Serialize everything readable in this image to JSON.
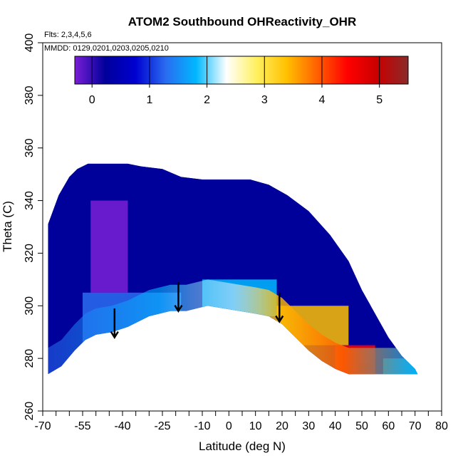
{
  "chart_data": {
    "type": "heatmap",
    "title": "ATOM2 Southbound OHReactivity_OHR",
    "flights_label": "Flts: 2,3,4,5,6",
    "dates_label": "MMDD: 0129,0201,0203,0205,0210",
    "xlabel": "Latitude (deg N)",
    "ylabel": "Theta (C)",
    "xlim": [
      -70,
      80
    ],
    "ylim": [
      260,
      400
    ],
    "x_ticks_labeled": [
      -70,
      -55,
      -40,
      -25,
      -10,
      0,
      10,
      20,
      30,
      40,
      50,
      60,
      70,
      80
    ],
    "x_ticks_minor": [
      -65,
      -60,
      -50,
      -45,
      -35,
      -30,
      -20,
      -15,
      -5,
      5,
      15,
      25,
      35,
      45,
      55,
      65,
      75
    ],
    "y_ticks": [
      260,
      280,
      300,
      320,
      340,
      360,
      380,
      400
    ],
    "colorbar": {
      "ticks": [
        0,
        1,
        2,
        3,
        4,
        5
      ],
      "range": [
        -0.3,
        5.5
      ]
    },
    "colors": {
      "scale": [
        "#7a1ed6",
        "#00009a",
        "#0000d0",
        "#2a6cf0",
        "#00b8ff",
        "#ffffff",
        "#fff060",
        "#ffc000",
        "#ff6000",
        "#ff0000",
        "#c80000",
        "#8b2a2a"
      ],
      "frame": "#000000"
    },
    "filled_region": {
      "upper": [
        [
          -68,
          331
        ],
        [
          -64,
          342
        ],
        [
          -60,
          349
        ],
        [
          -57,
          352
        ],
        [
          -53,
          354
        ],
        [
          -38,
          354
        ],
        [
          -33,
          353
        ],
        [
          -25,
          352
        ],
        [
          -18,
          349
        ],
        [
          -10,
          348
        ],
        [
          -2,
          348
        ],
        [
          8,
          348
        ],
        [
          15,
          346
        ],
        [
          22,
          342
        ],
        [
          30,
          336
        ],
        [
          38,
          327
        ],
        [
          45,
          317
        ],
        [
          50,
          306
        ],
        [
          55,
          297
        ],
        [
          60,
          288
        ],
        [
          65,
          281
        ],
        [
          70,
          276
        ],
        [
          71,
          274
        ]
      ],
      "lower": [
        [
          -68,
          274
        ],
        [
          -63,
          277
        ],
        [
          -58,
          283
        ],
        [
          -54,
          287
        ],
        [
          -50,
          289
        ],
        [
          -44,
          290
        ],
        [
          -38,
          292
        ],
        [
          -30,
          296
        ],
        [
          -22,
          298
        ],
        [
          -16,
          298
        ],
        [
          -8,
          300
        ],
        [
          -2,
          299
        ],
        [
          4,
          298
        ],
        [
          10,
          297
        ],
        [
          15,
          296
        ],
        [
          20,
          293
        ],
        [
          25,
          288
        ],
        [
          30,
          283
        ],
        [
          35,
          279
        ],
        [
          40,
          276
        ],
        [
          45,
          274
        ],
        [
          55,
          274
        ],
        [
          65,
          274
        ],
        [
          71,
          274
        ]
      ]
    },
    "arrows": [
      {
        "lat": -43,
        "theta": 294
      },
      {
        "lat": -19,
        "theta": 304
      },
      {
        "lat": 19,
        "theta": 300
      }
    ],
    "regions": [
      {
        "lat_min": -68,
        "lat_max": 71,
        "theta_min": 300,
        "theta_max": 355,
        "value": 0.1
      },
      {
        "lat_min": -52,
        "lat_max": -38,
        "theta_min": 305,
        "theta_max": 340,
        "value": -0.2
      },
      {
        "lat_min": -55,
        "lat_max": -18,
        "theta_min": 285,
        "theta_max": 305,
        "value": 1.4
      },
      {
        "lat_min": -10,
        "lat_max": 18,
        "theta_min": 296,
        "theta_max": 310,
        "value": 1.6
      },
      {
        "lat_min": 18,
        "lat_max": 45,
        "theta_min": 285,
        "theta_max": 300,
        "value": 3.5
      },
      {
        "lat_min": 40,
        "lat_max": 55,
        "theta_min": 274,
        "theta_max": 285,
        "value": 4.5
      },
      {
        "lat_min": 48,
        "lat_max": 54,
        "theta_min": 275,
        "theta_max": 278,
        "value": 5.2
      },
      {
        "lat_min": 58,
        "lat_max": 71,
        "theta_min": 274,
        "theta_max": 280,
        "value": 1.8
      }
    ]
  }
}
